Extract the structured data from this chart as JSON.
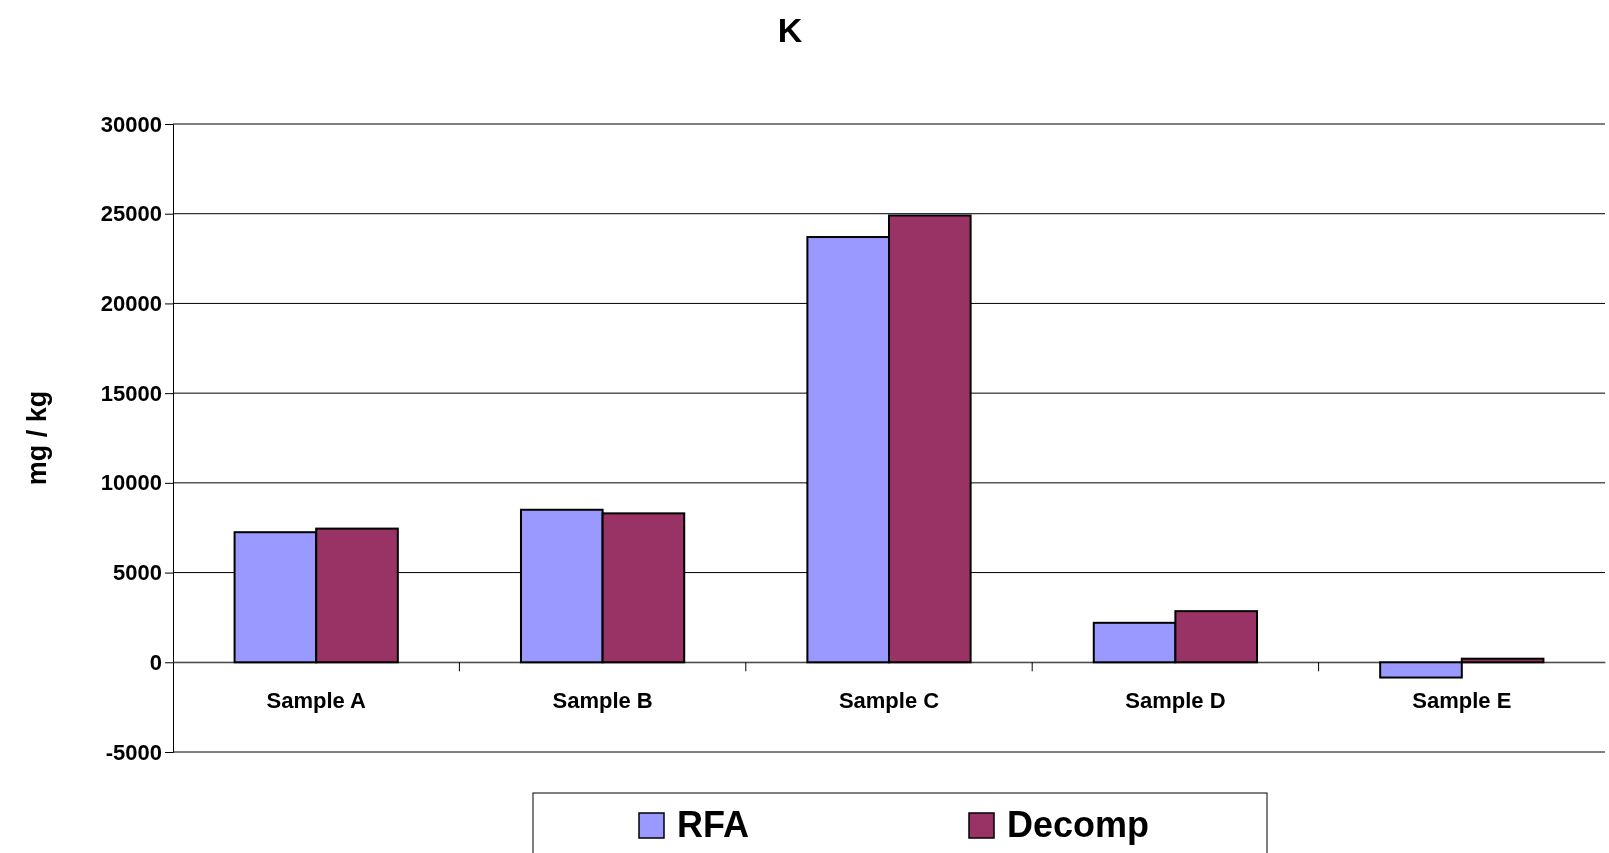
{
  "chart_data": {
    "type": "bar",
    "title": "K",
    "ylabel": "mg / kg",
    "categories": [
      "Sample A",
      "Sample B",
      "Sample C",
      "Sample D",
      "Sample E"
    ],
    "series": [
      {
        "name": "RFA",
        "color": "#9999ff",
        "values": [
          7250,
          8500,
          23700,
          2200,
          -850
        ]
      },
      {
        "name": "Decomp",
        "color": "#993366",
        "values": [
          7450,
          8300,
          24900,
          2850,
          200
        ]
      }
    ],
    "ylim": [
      -5000,
      30000
    ],
    "yticks": [
      -5000,
      0,
      5000,
      10000,
      15000,
      20000,
      25000,
      30000
    ],
    "grid": "y",
    "legend": "bottom"
  }
}
